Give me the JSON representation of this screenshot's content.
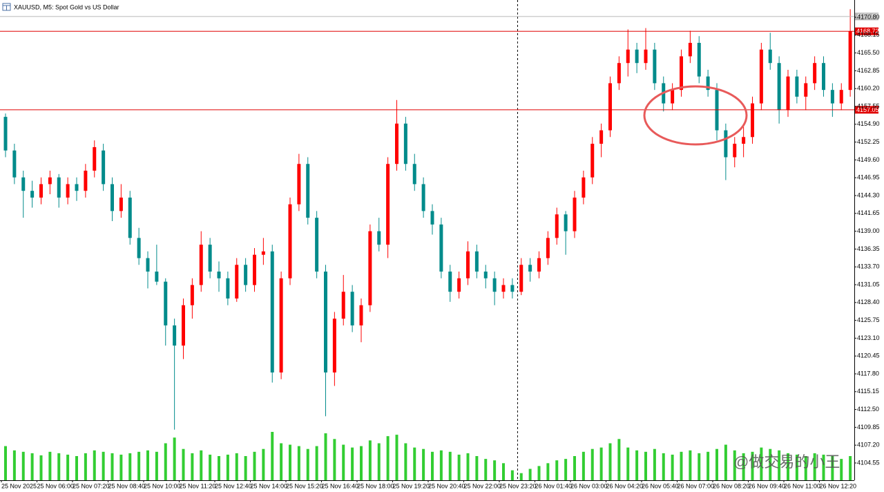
{
  "chart_data": {
    "type": "candlestick",
    "title": "XAUUSD, M5:  Spot Gold vs US Dollar",
    "up_color": "#ff0000",
    "down_color": "#008b8b",
    "volume_color": "#32cd32",
    "ylim": [
      4101.98,
      4173.37
    ],
    "yticks": [
      {
        "value": 4170.8,
        "label": "4170.80"
      },
      4168.15,
      {
        "value": 4165.5,
        "label": "4165.50"
      },
      4162.85,
      {
        "value": 4160.2,
        "label": "4160.20"
      },
      4157.55,
      {
        "value": 4154.9,
        "label": "4154.90"
      },
      4152.25,
      {
        "value": 4149.6,
        "label": "4149.60"
      },
      4146.95,
      {
        "value": 4144.3,
        "label": "4144.30"
      },
      4141.65,
      {
        "value": 4139,
        "label": "4139.00"
      },
      4136.35,
      {
        "value": 4133.7,
        "label": "4133.70"
      },
      4131.05,
      {
        "value": 4128.4,
        "label": "4128.40"
      },
      4125.75,
      {
        "value": 4123.1,
        "label": "4123.10"
      },
      4120.45,
      {
        "value": 4117.8,
        "label": "4117.80"
      },
      4115.15,
      {
        "value": 4112.5,
        "label": "4112.50"
      },
      4109.85,
      {
        "value": 4107.2,
        "label": "4107.20"
      },
      4104.55
    ],
    "x_labels": [
      "25 Nov 2025",
      "25 Nov 06:00",
      "25 Nov 07:20",
      "25 Nov 08:40",
      "25 Nov 10:00",
      "25 Nov 11:20",
      "25 Nov 12:40",
      "25 Nov 14:00",
      "25 Nov 15:20",
      "25 Nov 16:40",
      "25 Nov 18:00",
      "25 Nov 19:20",
      "25 Nov 20:40",
      "25 Nov 22:00",
      "25 Nov 23:20",
      "26 Nov 01:40",
      "26 Nov 03:00",
      "26 Nov 04:20",
      "26 Nov 05:40",
      "26 Nov 07:00",
      "26 Nov 08:20",
      "26 Nov 09:40",
      "26 Nov 11:00",
      "26 Nov 12:20"
    ],
    "price_lines": [
      {
        "value": 4170.92,
        "color": "#b8b8b8"
      },
      {
        "value": 4168.72,
        "color": "#e00000"
      },
      {
        "value": 4157.05,
        "color": "#e00000"
      }
    ],
    "watermark": "@做交易的小王",
    "candles": [
      [
        4156,
        4156.5,
        4150,
        4151
      ],
      [
        4151,
        4152,
        4146,
        4147
      ],
      [
        4147,
        4148,
        4141,
        4145
      ],
      [
        4145,
        4146.5,
        4142.5,
        4144
      ],
      [
        4144,
        4147,
        4143,
        4146
      ],
      [
        4146,
        4148,
        4144.5,
        4147
      ],
      [
        4147,
        4147.5,
        4142.5,
        4144
      ],
      [
        4144,
        4147,
        4143,
        4146
      ],
      [
        4146,
        4147,
        4143.5,
        4145
      ],
      [
        4145,
        4149,
        4144,
        4148
      ],
      [
        4148,
        4152.5,
        4147,
        4151.5
      ],
      [
        4151,
        4152,
        4145,
        4146
      ],
      [
        4146,
        4147,
        4140.5,
        4142
      ],
      [
        4142,
        4146,
        4141,
        4144
      ],
      [
        4144,
        4145,
        4137,
        4138
      ],
      [
        4138,
        4139.5,
        4134,
        4135
      ],
      [
        4135,
        4136,
        4130.5,
        4133
      ],
      [
        4133,
        4137,
        4131,
        4131.5
      ],
      [
        4131.5,
        4132,
        4122,
        4125
      ],
      [
        4125,
        4126,
        4109.5,
        4122
      ],
      [
        4122,
        4129,
        4120,
        4128
      ],
      [
        4128,
        4132,
        4126,
        4131
      ],
      [
        4131,
        4139,
        4130,
        4137
      ],
      [
        4137,
        4138,
        4132,
        4133
      ],
      [
        4133,
        4134.5,
        4130,
        4132
      ],
      [
        4132,
        4133,
        4128,
        4129
      ],
      [
        4129,
        4135,
        4128.5,
        4134
      ],
      [
        4134,
        4135,
        4130,
        4131
      ],
      [
        4131,
        4136.5,
        4130,
        4135.5
      ],
      [
        4135.5,
        4138,
        4134,
        4136
      ],
      [
        4136,
        4137,
        4116.5,
        4118
      ],
      [
        4118,
        4133,
        4117,
        4132
      ],
      [
        4132,
        4144,
        4131,
        4143
      ],
      [
        4143,
        4150.5,
        4142,
        4149
      ],
      [
        4149,
        4150,
        4140,
        4141
      ],
      [
        4141,
        4142,
        4132,
        4133
      ],
      [
        4133,
        4134,
        4111.5,
        4118
      ],
      [
        4118,
        4127,
        4116,
        4126
      ],
      [
        4126,
        4132.5,
        4125,
        4130
      ],
      [
        4130,
        4131,
        4124,
        4125
      ],
      [
        4125,
        4129,
        4122.5,
        4128
      ],
      [
        4128,
        4140,
        4127,
        4139
      ],
      [
        4139,
        4141,
        4136,
        4137
      ],
      [
        4137,
        4150,
        4135,
        4149
      ],
      [
        4149,
        4158.5,
        4148,
        4155
      ],
      [
        4155,
        4156,
        4148,
        4149
      ],
      [
        4149,
        4150.5,
        4145,
        4146
      ],
      [
        4146,
        4147,
        4141,
        4142
      ],
      [
        4142,
        4143,
        4138.5,
        4140
      ],
      [
        4140,
        4141,
        4132,
        4133
      ],
      [
        4133,
        4134,
        4128.5,
        4130
      ],
      [
        4130,
        4133,
        4129,
        4132
      ],
      [
        4132,
        4137.5,
        4131,
        4136
      ],
      [
        4136,
        4137,
        4132,
        4133
      ],
      [
        4133,
        4134,
        4130.5,
        4132
      ],
      [
        4132,
        4133,
        4128,
        4130
      ],
      [
        4130,
        4132,
        4129,
        4131
      ],
      [
        4131,
        4132,
        4129,
        4130
      ],
      [
        4130,
        4135,
        4129.5,
        4134
      ],
      [
        4134,
        4135,
        4131.5,
        4133
      ],
      [
        4133,
        4136,
        4132,
        4135
      ],
      [
        4135,
        4139,
        4134,
        4138
      ],
      [
        4138,
        4142.5,
        4137,
        4141.5
      ],
      [
        4141.5,
        4142,
        4135.5,
        4139
      ],
      [
        4139,
        4145,
        4138,
        4144
      ],
      [
        4144,
        4148,
        4143,
        4147
      ],
      [
        4147,
        4153,
        4146,
        4152
      ],
      [
        4152,
        4155,
        4150,
        4154
      ],
      [
        4154,
        4162,
        4153,
        4161
      ],
      [
        4161,
        4165,
        4160,
        4164
      ],
      [
        4164,
        4169,
        4162,
        4166
      ],
      [
        4166,
        4167,
        4162.5,
        4164
      ],
      [
        4164,
        4169.2,
        4163,
        4166
      ],
      [
        4166,
        4167,
        4160,
        4161
      ],
      [
        4161,
        4162,
        4156.8,
        4158
      ],
      [
        4158,
        4161,
        4157,
        4160
      ],
      [
        4160,
        4166,
        4159,
        4165
      ],
      [
        4165,
        4168.8,
        4164,
        4167
      ],
      [
        4167,
        4168,
        4161,
        4162
      ],
      [
        4162,
        4163,
        4159,
        4160
      ],
      [
        4160,
        4161,
        4152.5,
        4154
      ],
      [
        4154,
        4155,
        4146.6,
        4150
      ],
      [
        4150,
        4153,
        4148.5,
        4152
      ],
      [
        4152,
        4154.5,
        4150,
        4153
      ],
      [
        4153,
        4159,
        4152,
        4158
      ],
      [
        4158,
        4167,
        4157,
        4166
      ],
      [
        4166,
        4168.5,
        4163,
        4164
      ],
      [
        4164,
        4165,
        4155,
        4157
      ],
      [
        4157,
        4163,
        4156,
        4162
      ],
      [
        4162,
        4163,
        4158,
        4159
      ],
      [
        4159,
        4162,
        4157,
        4161
      ],
      [
        4161,
        4165,
        4160,
        4164
      ],
      [
        4164,
        4165,
        4159,
        4160
      ],
      [
        4160,
        4161,
        4156,
        4158
      ],
      [
        4158,
        4161,
        4157,
        4160
      ],
      [
        4160,
        4172,
        4159,
        4168.72
      ]
    ],
    "volumes": [
      48,
      42,
      40,
      38,
      35,
      40,
      38,
      36,
      34,
      38,
      42,
      40,
      38,
      36,
      38,
      40,
      42,
      40,
      52,
      60,
      44,
      38,
      42,
      36,
      34,
      36,
      38,
      34,
      40,
      44,
      68,
      52,
      50,
      48,
      44,
      48,
      66,
      58,
      50,
      46,
      48,
      56,
      52,
      62,
      64,
      52,
      46,
      44,
      40,
      42,
      40,
      36,
      38,
      34,
      30,
      28,
      24,
      14,
      10,
      16,
      20,
      24,
      28,
      30,
      34,
      40,
      44,
      46,
      52,
      58,
      46,
      42,
      40,
      44,
      38,
      36,
      40,
      42,
      38,
      40,
      44,
      50,
      42,
      38,
      40,
      46,
      44,
      42,
      38,
      36,
      34,
      38,
      36,
      34,
      30,
      34
    ]
  }
}
